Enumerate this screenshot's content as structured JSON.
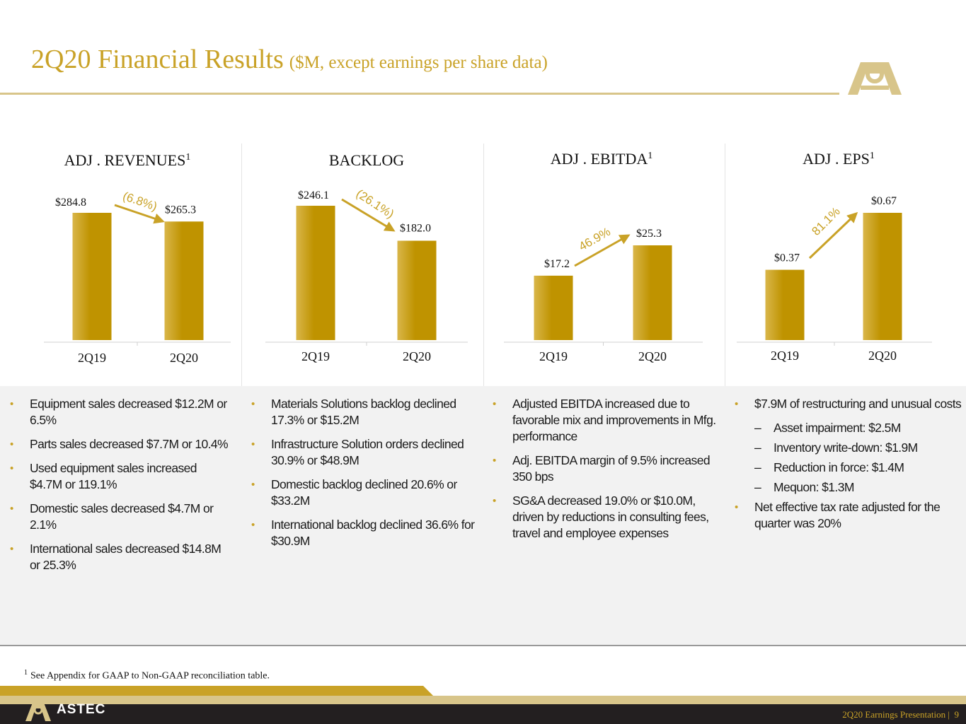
{
  "header": {
    "title": "2Q20 Financial Results",
    "subtitle": "($M, except earnings per share data)"
  },
  "colors": {
    "gold": "#C9A227",
    "bar": "#BF9300",
    "bar_light": "#D9B64A",
    "footer": "#231F20"
  },
  "icons": {
    "logo": "astec-a-logo-icon",
    "arrow": "trend-arrow-icon"
  },
  "chart_data": [
    {
      "type": "bar",
      "title": "ADJ . REVENUES",
      "title_sup": "1",
      "categories": [
        "2Q19",
        "2Q20"
      ],
      "values": [
        284.8,
        265.3
      ],
      "value_labels": [
        "$284.8",
        "$265.3"
      ],
      "change_label": "(6.8%)",
      "change_direction": "down"
    },
    {
      "type": "bar",
      "title": "BACKLOG",
      "title_sup": "",
      "categories": [
        "2Q19",
        "2Q20"
      ],
      "values": [
        246.1,
        182.0
      ],
      "value_labels": [
        "$246.1",
        "$182.0"
      ],
      "change_label": "(26.1%)",
      "change_direction": "down"
    },
    {
      "type": "bar",
      "title": "ADJ . EBITDA",
      "title_sup": "1",
      "categories": [
        "2Q19",
        "2Q20"
      ],
      "values": [
        17.2,
        25.3
      ],
      "value_labels": [
        "$17.2",
        "$25.3"
      ],
      "change_label": "46.9%",
      "change_direction": "up"
    },
    {
      "type": "bar",
      "title": "ADJ . EPS",
      "title_sup": "1",
      "categories": [
        "2Q19",
        "2Q20"
      ],
      "values": [
        0.37,
        0.67
      ],
      "value_labels": [
        "$0.37",
        "$0.67"
      ],
      "change_label": "81.1%",
      "change_direction": "up"
    }
  ],
  "columns": [
    {
      "bullets": [
        {
          "text": "Equipment sales decreased $12.2M or 6.5%"
        },
        {
          "text": "Parts sales decreased $7.7M or 10.4%"
        },
        {
          "text": "Used equipment sales increased $4.7M or 119.1%"
        },
        {
          "text": "Domestic sales decreased $4.7M or 2.1%"
        },
        {
          "text": "International sales decreased $14.8M or 25.3%"
        }
      ]
    },
    {
      "bullets": [
        {
          "text": "Materials Solutions backlog declined 17.3% or $15.2M"
        },
        {
          "text": "Infrastructure Solution orders declined 30.9% or $48.9M"
        },
        {
          "text": "Domestic backlog declined 20.6% or $33.2M"
        },
        {
          "text": "International backlog declined 36.6% for $30.9M"
        }
      ]
    },
    {
      "bullets": [
        {
          "text": "Adjusted EBITDA increased due to favorable mix and improvements in Mfg. performance"
        },
        {
          "text": "Adj. EBITDA margin of 9.5% increased 350 bps"
        },
        {
          "text": "SG&A decreased 19.0% or $10.0M, driven by reductions in consulting fees, travel and employee expenses"
        }
      ]
    },
    {
      "bullets": [
        {
          "text": "$7.9M of restructuring and unusual costs",
          "sub": [
            "Asset impairment: $2.5M",
            "Inventory write-down: $1.9M",
            "Reduction in force: $1.4M",
            "Mequon: $1.3M"
          ]
        },
        {
          "text": "Net effective tax rate adjusted for the quarter was 20%"
        }
      ]
    }
  ],
  "footnote": {
    "marker": "1",
    "text": "See Appendix for GAAP to Non-GAAP reconciliation table."
  },
  "footer": {
    "brand": "ASTEC",
    "presentation": "2Q20 Earnings Presentation |",
    "page": "9"
  }
}
